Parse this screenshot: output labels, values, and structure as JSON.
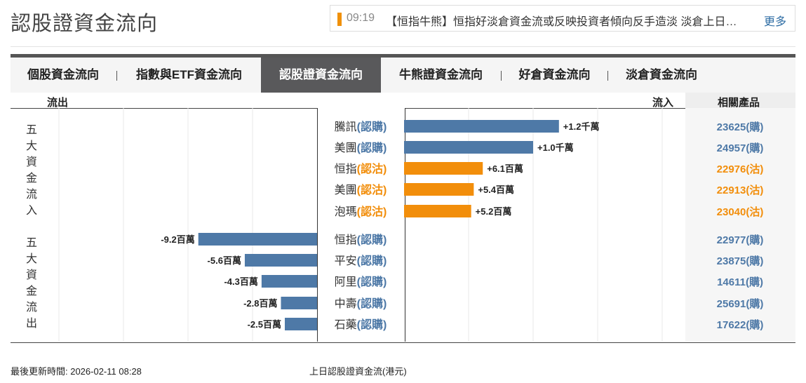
{
  "page_title": "認股證資金流向",
  "ticker": {
    "time": "09:19",
    "text": "【恒指牛熊】恒指好淡倉資金流或反映投資者傾向反手造淡 淡倉上日…",
    "more": "更多"
  },
  "tabs": [
    {
      "label": "個股資金流向",
      "active": false
    },
    {
      "label": "指數與ETF資金流向",
      "active": false
    },
    {
      "label": "認股證資金流向",
      "active": true
    },
    {
      "label": "牛熊證資金流向",
      "active": false
    },
    {
      "label": "好倉資金流向",
      "active": false
    },
    {
      "label": "淡倉資金流向",
      "active": false
    }
  ],
  "headers": {
    "outflow": "流出",
    "inflow": "流入",
    "products": "相關產品"
  },
  "group_labels": {
    "inflow": [
      "五",
      "大",
      "資",
      "金",
      "流",
      "入"
    ],
    "outflow": [
      "五",
      "大",
      "資",
      "金",
      "流",
      "出"
    ]
  },
  "colors": {
    "call": "#4e79a7",
    "put": "#f28e0b",
    "axis": "#444444",
    "grid": "#e8e8e8"
  },
  "chart_data": {
    "type": "bar",
    "orientation": "horizontal",
    "xlim": [
      -22,
      22
    ],
    "xticks": [
      -20,
      -15,
      -10,
      -5,
      5,
      10,
      15,
      20
    ],
    "xlabel": "上日認股證資金流(港元)",
    "rows": [
      {
        "stock": "騰訊",
        "kind": "(認購)",
        "type": "call",
        "value": 12,
        "label": "+1.2千萬",
        "product": "23625(購)"
      },
      {
        "stock": "美團",
        "kind": "(認購)",
        "type": "call",
        "value": 10,
        "label": "+1.0千萬",
        "product": "24957(購)"
      },
      {
        "stock": "恒指",
        "kind": "(認沽)",
        "type": "put",
        "value": 6.1,
        "label": "+6.1百萬",
        "product": "22976(沽)"
      },
      {
        "stock": "美團",
        "kind": "(認沽)",
        "type": "put",
        "value": 5.4,
        "label": "+5.4百萬",
        "product": "22913(沽)"
      },
      {
        "stock": "泡瑪",
        "kind": "(認沽)",
        "type": "put",
        "value": 5.2,
        "label": "+5.2百萬",
        "product": "23040(沽)"
      },
      {
        "stock": "恒指",
        "kind": "(認購)",
        "type": "call",
        "value": -9.2,
        "label": "-9.2百萬",
        "product": "22977(購)"
      },
      {
        "stock": "平安",
        "kind": "(認購)",
        "type": "call",
        "value": -5.6,
        "label": "-5.6百萬",
        "product": "23875(購)"
      },
      {
        "stock": "阿里",
        "kind": "(認購)",
        "type": "call",
        "value": -4.3,
        "label": "-4.3百萬",
        "product": "14611(購)"
      },
      {
        "stock": "中壽",
        "kind": "(認購)",
        "type": "call",
        "value": -2.8,
        "label": "-2.8百萬",
        "product": "25691(購)"
      },
      {
        "stock": "石藥",
        "kind": "(認購)",
        "type": "call",
        "value": -2.5,
        "label": "-2.5百萬",
        "product": "17622(購)"
      }
    ]
  },
  "footer": {
    "updated": "最後更新時間: 2026-02-11 08:28"
  }
}
